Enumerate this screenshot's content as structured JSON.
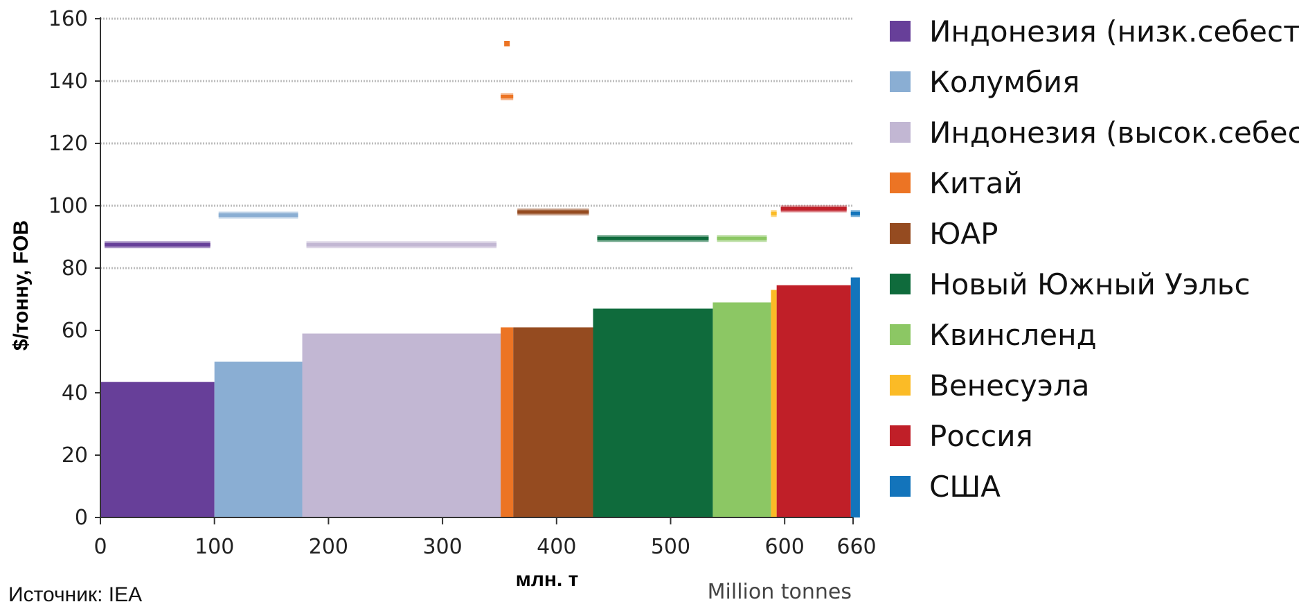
{
  "chart_data": {
    "type": "bar",
    "subtype": "supply-cost-curve",
    "ylabel": "$/тонну, FOB",
    "xlabel": "млн. т",
    "xlabel_secondary": "Million tonnes",
    "source": "Источник: IEA",
    "xlim": [
      0,
      660
    ],
    "ylim": [
      0,
      160
    ],
    "x_ticks": [
      0,
      100,
      200,
      300,
      400,
      500,
      600,
      660
    ],
    "y_ticks": [
      0,
      20,
      40,
      60,
      80,
      100,
      120,
      140,
      160
    ],
    "grid": "horizontal dotted lines at 80, 100, 120, 140, 160",
    "legend_position": "right",
    "series": [
      {
        "name": "Индонезия (низк.себест.)",
        "color": "#673f99",
        "x_start": 0,
        "x_end": 100,
        "cost": 43.5,
        "price": 87.5
      },
      {
        "name": "Колумбия",
        "color": "#8aaed3",
        "x_start": 100,
        "x_end": 177,
        "cost": 50,
        "price": 97
      },
      {
        "name": "Индонезия (высок.себест.)",
        "color": "#c2b7d3",
        "x_start": 177,
        "x_end": 351,
        "cost": 59,
        "price": 87.5
      },
      {
        "name": "Китай",
        "color": "#ec7424",
        "x_start": 351,
        "x_end": 362,
        "cost": 61,
        "price": 135,
        "price2": 152
      },
      {
        "name": "ЮАР",
        "color": "#954b20",
        "x_start": 362,
        "x_end": 432,
        "cost": 61,
        "price": 98
      },
      {
        "name": "Новый Южный Уэльс",
        "color": "#0f6b3c",
        "x_start": 432,
        "x_end": 537,
        "cost": 67,
        "price": 89.5
      },
      {
        "name": "Квинсленд",
        "color": "#8cc764",
        "x_start": 537,
        "x_end": 588,
        "cost": 69,
        "price": 89.5
      },
      {
        "name": "Венесуэла",
        "color": "#fbbb26",
        "x_start": 588,
        "x_end": 593,
        "cost": 73,
        "price": 97.5
      },
      {
        "name": "Россия",
        "color": "#c01f28",
        "x_start": 593,
        "x_end": 658,
        "cost": 74.5,
        "price": 99
      },
      {
        "name": "США",
        "color": "#1374bb",
        "x_start": 658,
        "x_end": 666,
        "cost": 77,
        "price": 97.5
      }
    ]
  }
}
